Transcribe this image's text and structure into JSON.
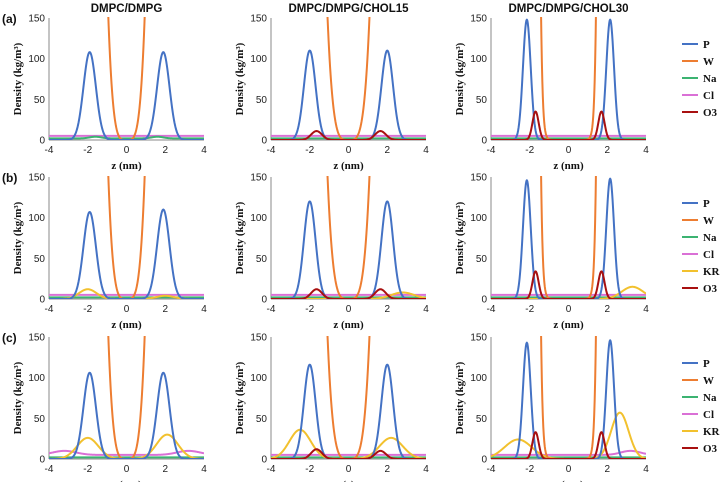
{
  "colors": {
    "P": "#4472C4",
    "W": "#ED7D31",
    "Na": "#3CB371",
    "Cl": "#DA70D6",
    "KR": "#F2C12E",
    "O3": "#A81010"
  },
  "chart_data": [
    {
      "id": "a1",
      "type": "line",
      "row_label": "(a)",
      "title": "DMPC/DMPG",
      "xlabel": "z (nm)",
      "ylabel": "Density (kg/m³)",
      "xlim": [
        -4,
        4
      ],
      "ylim": [
        0,
        150
      ],
      "xticks": [
        "-4",
        "-2",
        "0",
        "2",
        "4"
      ],
      "yticks": [
        "0",
        "50",
        "100",
        "150"
      ],
      "series": [
        {
          "name": "P",
          "peaks": [
            {
              "mu": -1.9,
              "amp": 108,
              "sigma": 0.32
            },
            {
              "mu": 1.9,
              "amp": 108,
              "sigma": 0.32
            }
          ]
        },
        {
          "name": "W",
          "water": {
            "k": 195,
            "power": 4
          }
        },
        {
          "name": "Na",
          "base": 2,
          "peaks": [
            {
              "mu": -1.6,
              "amp": 2,
              "sigma": 0.3
            },
            {
              "mu": 1.6,
              "amp": 2,
              "sigma": 0.3
            }
          ]
        },
        {
          "name": "Cl",
          "base": 5,
          "peaks": []
        }
      ]
    },
    {
      "id": "a2",
      "type": "line",
      "row_label": "",
      "title": "DMPC/DMPG/CHOL15",
      "xlabel": "z (nm)",
      "ylabel": "Density (kg/m³)",
      "xlim": [
        -4,
        4
      ],
      "ylim": [
        0,
        150
      ],
      "xticks": [
        "-4",
        "-2",
        "0",
        "2",
        "4"
      ],
      "yticks": [
        "0",
        "50",
        "100",
        "150"
      ],
      "series": [
        {
          "name": "P",
          "peaks": [
            {
              "mu": -2.0,
              "amp": 110,
              "sigma": 0.3
            },
            {
              "mu": 2.0,
              "amp": 110,
              "sigma": 0.3
            }
          ]
        },
        {
          "name": "W",
          "water": {
            "k": 110,
            "power": 4
          }
        },
        {
          "name": "Na",
          "base": 2,
          "peaks": []
        },
        {
          "name": "Cl",
          "base": 5,
          "peaks": []
        },
        {
          "name": "O3",
          "peaks": [
            {
              "mu": -1.65,
              "amp": 11,
              "sigma": 0.28
            },
            {
              "mu": 1.65,
              "amp": 11,
              "sigma": 0.28
            }
          ]
        }
      ]
    },
    {
      "id": "a3",
      "type": "line",
      "row_label": "",
      "title": "DMPC/DMPG/CHOL30",
      "xlabel": "z (nm)",
      "ylabel": "Density (kg/m³)",
      "xlim": [
        -4,
        4
      ],
      "ylim": [
        0,
        150
      ],
      "xticks": [
        "-4",
        "-2",
        "0",
        "2",
        "4"
      ],
      "yticks": [
        "0",
        "50",
        "100",
        "150"
      ],
      "series": [
        {
          "name": "P",
          "peaks": [
            {
              "mu": -2.15,
              "amp": 148,
              "sigma": 0.2
            },
            {
              "mu": 2.15,
              "amp": 148,
              "sigma": 0.2
            }
          ]
        },
        {
          "name": "W",
          "water": {
            "edge": 1.55,
            "steep": 3.2
          }
        },
        {
          "name": "Na",
          "base": 2,
          "peaks": []
        },
        {
          "name": "Cl",
          "base": 5,
          "peaks": []
        },
        {
          "name": "O3",
          "peaks": [
            {
              "mu": -1.7,
              "amp": 35,
              "sigma": 0.16
            },
            {
              "mu": 1.7,
              "amp": 35,
              "sigma": 0.16
            }
          ]
        }
      ],
      "legend": [
        "P",
        "W",
        "Na",
        "Cl",
        "O3"
      ]
    },
    {
      "id": "b1",
      "type": "line",
      "row_label": "(b)",
      "title": "",
      "xlabel": "z (nm)",
      "ylabel": "Density (kg/m³)",
      "xlim": [
        -4,
        4
      ],
      "ylim": [
        0,
        150
      ],
      "xticks": [
        "-4",
        "-2",
        "0",
        "2",
        "4"
      ],
      "yticks": [
        "0",
        "50",
        "100",
        "150"
      ],
      "series": [
        {
          "name": "P",
          "peaks": [
            {
              "mu": -1.9,
              "amp": 107,
              "sigma": 0.32
            },
            {
              "mu": 1.9,
              "amp": 110,
              "sigma": 0.32
            }
          ]
        },
        {
          "name": "W",
          "water": {
            "k": 195,
            "power": 4
          }
        },
        {
          "name": "Na",
          "base": 2,
          "peaks": []
        },
        {
          "name": "Cl",
          "base": 5,
          "peaks": []
        },
        {
          "name": "KR",
          "peaks": [
            {
              "mu": -2.0,
              "amp": 12,
              "sigma": 0.45
            },
            {
              "mu": 2.0,
              "amp": 4,
              "sigma": 0.45
            }
          ]
        }
      ]
    },
    {
      "id": "b2",
      "type": "line",
      "row_label": "",
      "title": "",
      "xlabel": "z (nm)",
      "ylabel": "Density (kg/m³)",
      "xlim": [
        -4,
        4
      ],
      "ylim": [
        0,
        150
      ],
      "xticks": [
        "-4",
        "-2",
        "0",
        "2",
        "4"
      ],
      "yticks": [
        "0",
        "50",
        "100",
        "150"
      ],
      "series": [
        {
          "name": "P",
          "peaks": [
            {
              "mu": -2.0,
              "amp": 120,
              "sigma": 0.3
            },
            {
              "mu": 2.0,
              "amp": 120,
              "sigma": 0.3
            }
          ]
        },
        {
          "name": "W",
          "water": {
            "k": 110,
            "power": 4
          }
        },
        {
          "name": "Na",
          "base": 2,
          "peaks": []
        },
        {
          "name": "Cl",
          "base": 5,
          "peaks": []
        },
        {
          "name": "KR",
          "peaks": [
            {
              "mu": 2.8,
              "amp": 8,
              "sigma": 0.6
            }
          ]
        },
        {
          "name": "O3",
          "peaks": [
            {
              "mu": -1.65,
              "amp": 12,
              "sigma": 0.28
            },
            {
              "mu": 1.65,
              "amp": 12,
              "sigma": 0.28
            }
          ]
        }
      ]
    },
    {
      "id": "b3",
      "type": "line",
      "row_label": "",
      "title": "",
      "xlabel": "z (nm)",
      "ylabel": "Density (kg/m³)",
      "xlim": [
        -4,
        4
      ],
      "ylim": [
        0,
        150
      ],
      "xticks": [
        "-4",
        "-2",
        "0",
        "2",
        "4"
      ],
      "yticks": [
        "0",
        "50",
        "100",
        "150"
      ],
      "series": [
        {
          "name": "P",
          "peaks": [
            {
              "mu": -2.15,
              "amp": 146,
              "sigma": 0.2
            },
            {
              "mu": 2.15,
              "amp": 148,
              "sigma": 0.2
            }
          ]
        },
        {
          "name": "W",
          "water": {
            "edge": 1.55,
            "steep": 3.2
          }
        },
        {
          "name": "Na",
          "base": 2,
          "peaks": []
        },
        {
          "name": "Cl",
          "base": 5,
          "peaks": []
        },
        {
          "name": "KR",
          "peaks": [
            {
              "mu": 3.3,
              "amp": 15,
              "sigma": 0.55
            }
          ]
        },
        {
          "name": "O3",
          "peaks": [
            {
              "mu": -1.7,
              "amp": 34,
              "sigma": 0.16
            },
            {
              "mu": 1.7,
              "amp": 34,
              "sigma": 0.16
            }
          ]
        }
      ],
      "legend": [
        "P",
        "W",
        "Na",
        "Cl",
        "KR",
        "O3"
      ]
    },
    {
      "id": "c1",
      "type": "line",
      "row_label": "(c)",
      "title": "",
      "xlabel": "z (nm)",
      "ylabel": "Density (kg/m³)",
      "xlim": [
        -4,
        4
      ],
      "ylim": [
        0,
        150
      ],
      "xticks": [
        "-4",
        "-2",
        "0",
        "2",
        "4"
      ],
      "yticks": [
        "0",
        "50",
        "100",
        "150"
      ],
      "series": [
        {
          "name": "P",
          "peaks": [
            {
              "mu": -1.9,
              "amp": 106,
              "sigma": 0.32
            },
            {
              "mu": 1.9,
              "amp": 106,
              "sigma": 0.32
            }
          ]
        },
        {
          "name": "W",
          "water": {
            "k": 195,
            "power": 4
          }
        },
        {
          "name": "Na",
          "base": 2,
          "peaks": []
        },
        {
          "name": "Cl",
          "base": 5,
          "peaks": [
            {
              "mu": -3.2,
              "amp": 5,
              "sigma": 0.6
            },
            {
              "mu": 3.2,
              "amp": 5,
              "sigma": 0.6
            }
          ]
        },
        {
          "name": "KR",
          "peaks": [
            {
              "mu": -2.0,
              "amp": 26,
              "sigma": 0.55
            },
            {
              "mu": 2.1,
              "amp": 30,
              "sigma": 0.55
            }
          ]
        }
      ]
    },
    {
      "id": "c2",
      "type": "line",
      "row_label": "",
      "title": "",
      "xlabel": "(z)",
      "ylabel": "Density (kg/m³)",
      "xlim": [
        -4,
        4
      ],
      "ylim": [
        0,
        150
      ],
      "xticks": [
        "-4",
        "-2",
        "0",
        "2",
        "4"
      ],
      "yticks": [
        "0",
        "50",
        "100",
        "150"
      ],
      "series": [
        {
          "name": "P",
          "peaks": [
            {
              "mu": -2.0,
              "amp": 116,
              "sigma": 0.3
            },
            {
              "mu": 2.0,
              "amp": 116,
              "sigma": 0.3
            }
          ]
        },
        {
          "name": "W",
          "water": {
            "k": 110,
            "power": 4
          }
        },
        {
          "name": "Na",
          "base": 2,
          "peaks": []
        },
        {
          "name": "Cl",
          "base": 5,
          "peaks": []
        },
        {
          "name": "KR",
          "peaks": [
            {
              "mu": -2.5,
              "amp": 36,
              "sigma": 0.55
            },
            {
              "mu": 2.2,
              "amp": 26,
              "sigma": 0.6
            }
          ]
        },
        {
          "name": "O3",
          "peaks": [
            {
              "mu": -1.65,
              "amp": 12,
              "sigma": 0.28
            },
            {
              "mu": 1.65,
              "amp": 10,
              "sigma": 0.28
            }
          ]
        }
      ]
    },
    {
      "id": "c3",
      "type": "line",
      "row_label": "",
      "title": "",
      "xlabel": "z (nm)",
      "ylabel": "Density (kg/m³)",
      "xlim": [
        -4,
        4
      ],
      "ylim": [
        0,
        150
      ],
      "xticks": [
        "-4",
        "-2",
        "0",
        "2",
        "4"
      ],
      "yticks": [
        "0",
        "50",
        "100",
        "150"
      ],
      "series": [
        {
          "name": "P",
          "peaks": [
            {
              "mu": -2.15,
              "amp": 143,
              "sigma": 0.2
            },
            {
              "mu": 2.15,
              "amp": 146,
              "sigma": 0.2
            }
          ]
        },
        {
          "name": "W",
          "water": {
            "edge": 1.55,
            "steep": 3.2
          }
        },
        {
          "name": "Na",
          "base": 2,
          "peaks": []
        },
        {
          "name": "Cl",
          "base": 5,
          "peaks": [
            {
              "mu": 3.2,
              "amp": 5,
              "sigma": 0.5
            }
          ]
        },
        {
          "name": "KR",
          "peaks": [
            {
              "mu": -2.6,
              "amp": 24,
              "sigma": 0.7
            },
            {
              "mu": 2.65,
              "amp": 57,
              "sigma": 0.45
            }
          ]
        },
        {
          "name": "O3",
          "peaks": [
            {
              "mu": -1.7,
              "amp": 33,
              "sigma": 0.16
            },
            {
              "mu": 1.7,
              "amp": 33,
              "sigma": 0.16
            }
          ]
        }
      ],
      "legend": [
        "P",
        "W",
        "Na",
        "Cl",
        "KR",
        "O3"
      ]
    }
  ]
}
